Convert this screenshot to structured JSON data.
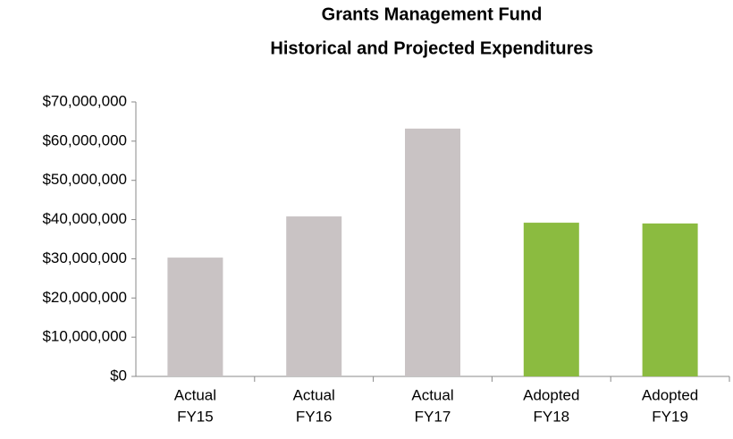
{
  "chart_data": {
    "type": "bar",
    "title": [
      "Grants Management Fund",
      "Historical and Projected Expenditures"
    ],
    "categories": [
      [
        "Actual",
        "FY15"
      ],
      [
        "Actual",
        "FY16"
      ],
      [
        "Actual",
        "FY17"
      ],
      [
        "Adopted",
        "FY18"
      ],
      [
        "Adopted",
        "FY19"
      ]
    ],
    "values": [
      30300000,
      40800000,
      63200000,
      39200000,
      39000000
    ],
    "colors": [
      "#c9c3c4",
      "#c9c3c4",
      "#c9c3c4",
      "#8bbb40",
      "#8bbb40"
    ],
    "ylim": [
      0,
      70000000
    ],
    "yticks": [
      {
        "value": 0,
        "label": "$0"
      },
      {
        "value": 10000000,
        "label": "$10,000,000"
      },
      {
        "value": 20000000,
        "label": "$20,000,000"
      },
      {
        "value": 30000000,
        "label": "$30,000,000"
      },
      {
        "value": 40000000,
        "label": "$40,000,000"
      },
      {
        "value": 50000000,
        "label": "$50,000,000"
      },
      {
        "value": 60000000,
        "label": "$60,000,000"
      },
      {
        "value": 70000000,
        "label": "$70,000,000"
      }
    ],
    "grid": false
  }
}
